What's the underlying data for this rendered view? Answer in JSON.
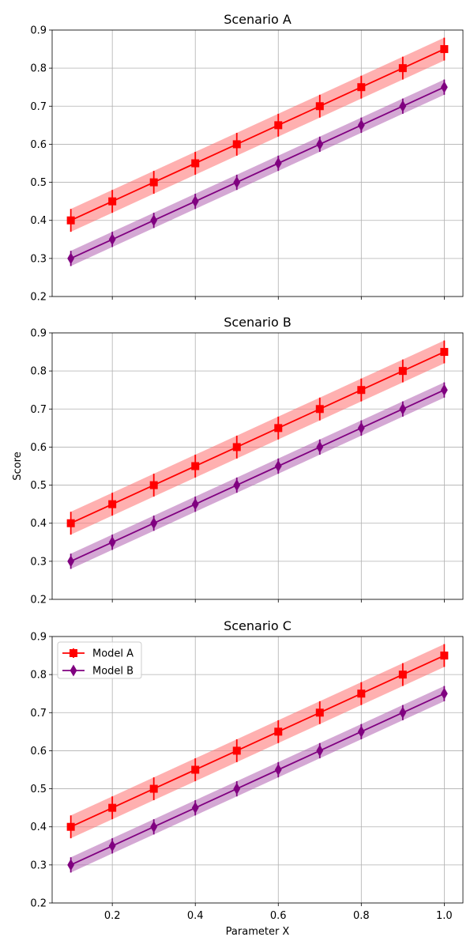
{
  "chart_data": [
    {
      "type": "line",
      "title": "Scenario A",
      "xlabel": "",
      "ylabel": "",
      "x": [
        0.1,
        0.2,
        0.3,
        0.4,
        0.5,
        0.6,
        0.7,
        0.8,
        0.9,
        1.0
      ],
      "xlim": [
        0.055,
        1.045
      ],
      "ylim": [
        0.2,
        0.9
      ],
      "xticks": [
        0.2,
        0.4,
        0.6,
        0.8,
        1.0
      ],
      "xtick_labels_visible": false,
      "yticks": [
        0.2,
        0.3,
        0.4,
        0.5,
        0.6,
        0.7,
        0.8,
        0.9
      ],
      "grid": true,
      "legend": null,
      "series": [
        {
          "name": "Model A",
          "color": "#ff0000",
          "band_color": "#ff6f6f",
          "marker": "square",
          "values": [
            0.4,
            0.45,
            0.5,
            0.55,
            0.6,
            0.65,
            0.7,
            0.75,
            0.8,
            0.85
          ],
          "error": 0.03
        },
        {
          "name": "Model B",
          "color": "#800080",
          "band_color": "#b060b0",
          "marker": "diamond",
          "values": [
            0.3,
            0.35,
            0.4,
            0.45,
            0.5,
            0.55,
            0.6,
            0.65,
            0.7,
            0.75
          ],
          "error": 0.02
        }
      ]
    },
    {
      "type": "line",
      "title": "Scenario B",
      "xlabel": "",
      "ylabel": "Score",
      "x": [
        0.1,
        0.2,
        0.3,
        0.4,
        0.5,
        0.6,
        0.7,
        0.8,
        0.9,
        1.0
      ],
      "xlim": [
        0.055,
        1.045
      ],
      "ylim": [
        0.2,
        0.9
      ],
      "xticks": [
        0.2,
        0.4,
        0.6,
        0.8,
        1.0
      ],
      "xtick_labels_visible": false,
      "yticks": [
        0.2,
        0.3,
        0.4,
        0.5,
        0.6,
        0.7,
        0.8,
        0.9
      ],
      "grid": true,
      "legend": null,
      "series": [
        {
          "name": "Model A",
          "color": "#ff0000",
          "band_color": "#ff6f6f",
          "marker": "square",
          "values": [
            0.4,
            0.45,
            0.5,
            0.55,
            0.6,
            0.65,
            0.7,
            0.75,
            0.8,
            0.85
          ],
          "error": 0.03
        },
        {
          "name": "Model B",
          "color": "#800080",
          "band_color": "#b060b0",
          "marker": "diamond",
          "values": [
            0.3,
            0.35,
            0.4,
            0.45,
            0.5,
            0.55,
            0.6,
            0.65,
            0.7,
            0.75
          ],
          "error": 0.02
        }
      ]
    },
    {
      "type": "line",
      "title": "Scenario C",
      "xlabel": "Parameter X",
      "ylabel": "",
      "x": [
        0.1,
        0.2,
        0.3,
        0.4,
        0.5,
        0.6,
        0.7,
        0.8,
        0.9,
        1.0
      ],
      "xlim": [
        0.055,
        1.045
      ],
      "ylim": [
        0.2,
        0.9
      ],
      "xticks": [
        0.2,
        0.4,
        0.6,
        0.8,
        1.0
      ],
      "xtick_labels_visible": true,
      "yticks": [
        0.2,
        0.3,
        0.4,
        0.5,
        0.6,
        0.7,
        0.8,
        0.9
      ],
      "grid": true,
      "legend": "upper-left",
      "series": [
        {
          "name": "Model A",
          "color": "#ff0000",
          "band_color": "#ff6f6f",
          "marker": "square",
          "values": [
            0.4,
            0.45,
            0.5,
            0.55,
            0.6,
            0.65,
            0.7,
            0.75,
            0.8,
            0.85
          ],
          "error": 0.03
        },
        {
          "name": "Model B",
          "color": "#800080",
          "band_color": "#b060b0",
          "marker": "diamond",
          "values": [
            0.3,
            0.35,
            0.4,
            0.45,
            0.5,
            0.55,
            0.6,
            0.65,
            0.7,
            0.75
          ],
          "error": 0.02
        }
      ]
    }
  ]
}
